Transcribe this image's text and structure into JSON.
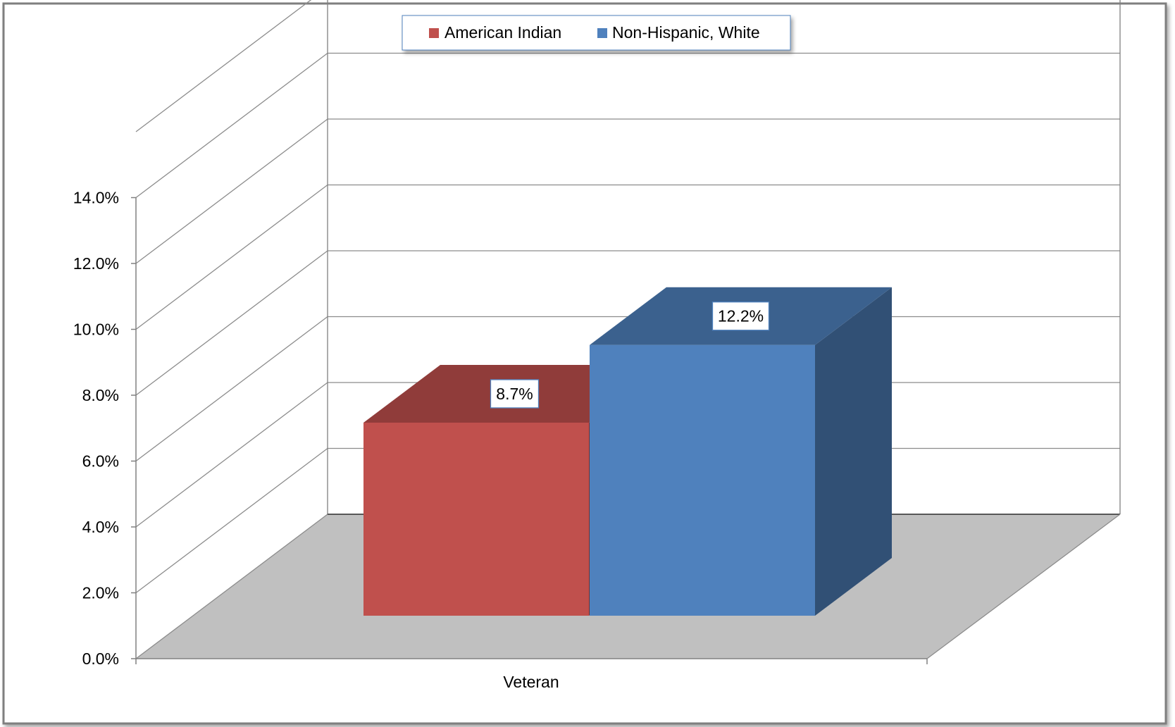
{
  "chart_data": {
    "type": "bar",
    "categories": [
      "Veteran"
    ],
    "series": [
      {
        "name": "American Indian",
        "values": [
          8.7
        ],
        "label": "8.7%",
        "color": "#c0504d"
      },
      {
        "name": "Non-Hispanic, White",
        "values": [
          12.2
        ],
        "label": "12.2%",
        "color": "#4f81bd"
      }
    ],
    "ylim": [
      0,
      14
    ],
    "y_ticks": [
      "0.0%",
      "2.0%",
      "4.0%",
      "6.0%",
      "8.0%",
      "10.0%",
      "12.0%",
      "14.0%"
    ],
    "grid": true,
    "legend_position": "top",
    "three_d": true
  }
}
